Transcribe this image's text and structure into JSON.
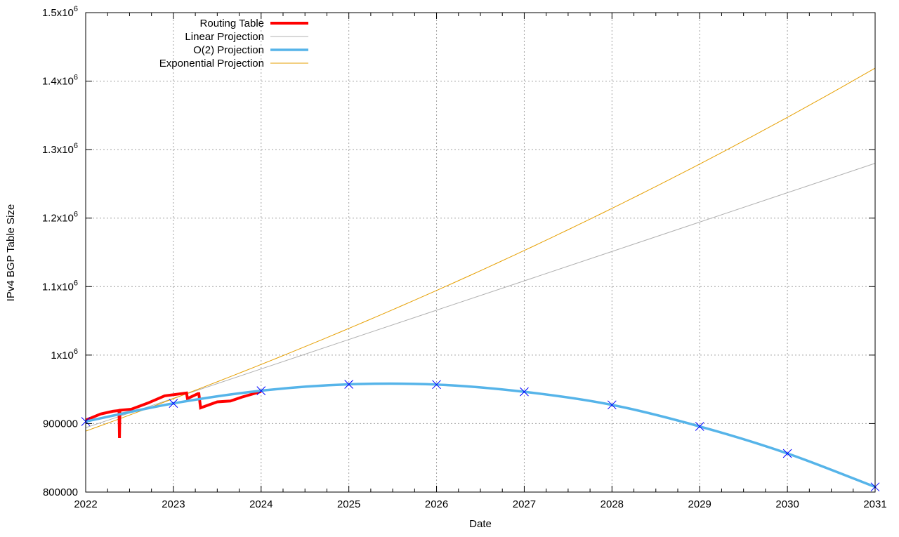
{
  "chart_data": {
    "type": "line",
    "title": "",
    "xlabel": "Date",
    "ylabel": "IPv4 BGP Table Size",
    "xlim": [
      2022,
      2031
    ],
    "ylim": [
      800000,
      1500000
    ],
    "grid": true,
    "legend_position": "top-left",
    "x_ticks": [
      "2022",
      "2023",
      "2024",
      "2025",
      "2026",
      "2027",
      "2028",
      "2029",
      "2030",
      "2031"
    ],
    "y_ticks": [
      {
        "value": 800000,
        "label": "800000",
        "exp": ""
      },
      {
        "value": 900000,
        "label": "900000",
        "exp": ""
      },
      {
        "value": 1000000,
        "label": "1x10",
        "exp": "6"
      },
      {
        "value": 1100000,
        "label": "1.1x10",
        "exp": "6"
      },
      {
        "value": 1200000,
        "label": "1.2x10",
        "exp": "6"
      },
      {
        "value": 1300000,
        "label": "1.3x10",
        "exp": "6"
      },
      {
        "value": 1400000,
        "label": "1.4x10",
        "exp": "6"
      },
      {
        "value": 1500000,
        "label": "1.5x10",
        "exp": "6"
      }
    ],
    "series": [
      {
        "name": "Routing Table",
        "color": "#ff0000",
        "x": [
          2022.0,
          2022.17,
          2022.31,
          2022.38,
          2022.385,
          2022.39,
          2022.52,
          2022.71,
          2022.9,
          2023.15,
          2023.16,
          2023.28,
          2023.29,
          2023.31,
          2023.5,
          2023.65,
          2023.78,
          2024.0
        ],
        "y": [
          905000,
          914000,
          918000,
          919000,
          879000,
          919500,
          921000,
          930000,
          940500,
          944700,
          936500,
          943700,
          943700,
          923000,
          931700,
          933000,
          938600,
          946800
        ]
      },
      {
        "name": "Linear Projection",
        "color": "#b0b0b0",
        "x": [
          2022,
          2023,
          2024,
          2025,
          2026,
          2027,
          2028,
          2029,
          2030,
          2031
        ],
        "y": [
          894000,
          936900,
          979800,
          1022700,
          1065600,
          1108400,
          1151300,
          1194200,
          1237100,
          1280000
        ]
      },
      {
        "name": "O(2) Projection",
        "color": "#56b4e9",
        "marker_color": "#0000ff",
        "x": [
          2022,
          2023,
          2024,
          2025,
          2026,
          2027,
          2028,
          2029,
          2030,
          2031
        ],
        "y": [
          903000,
          929500,
          948000,
          957300,
          957000,
          946400,
          927300,
          895800,
          856400,
          807500
        ]
      },
      {
        "name": "Exponential Projection",
        "color": "#e69f00",
        "x": [
          2022,
          2023,
          2024,
          2025,
          2026,
          2027,
          2028,
          2029,
          2030,
          2031
        ],
        "y": [
          889000,
          936400,
          986300,
          1038900,
          1094300,
          1152600,
          1214100,
          1278800,
          1347000,
          1419000
        ]
      }
    ]
  }
}
